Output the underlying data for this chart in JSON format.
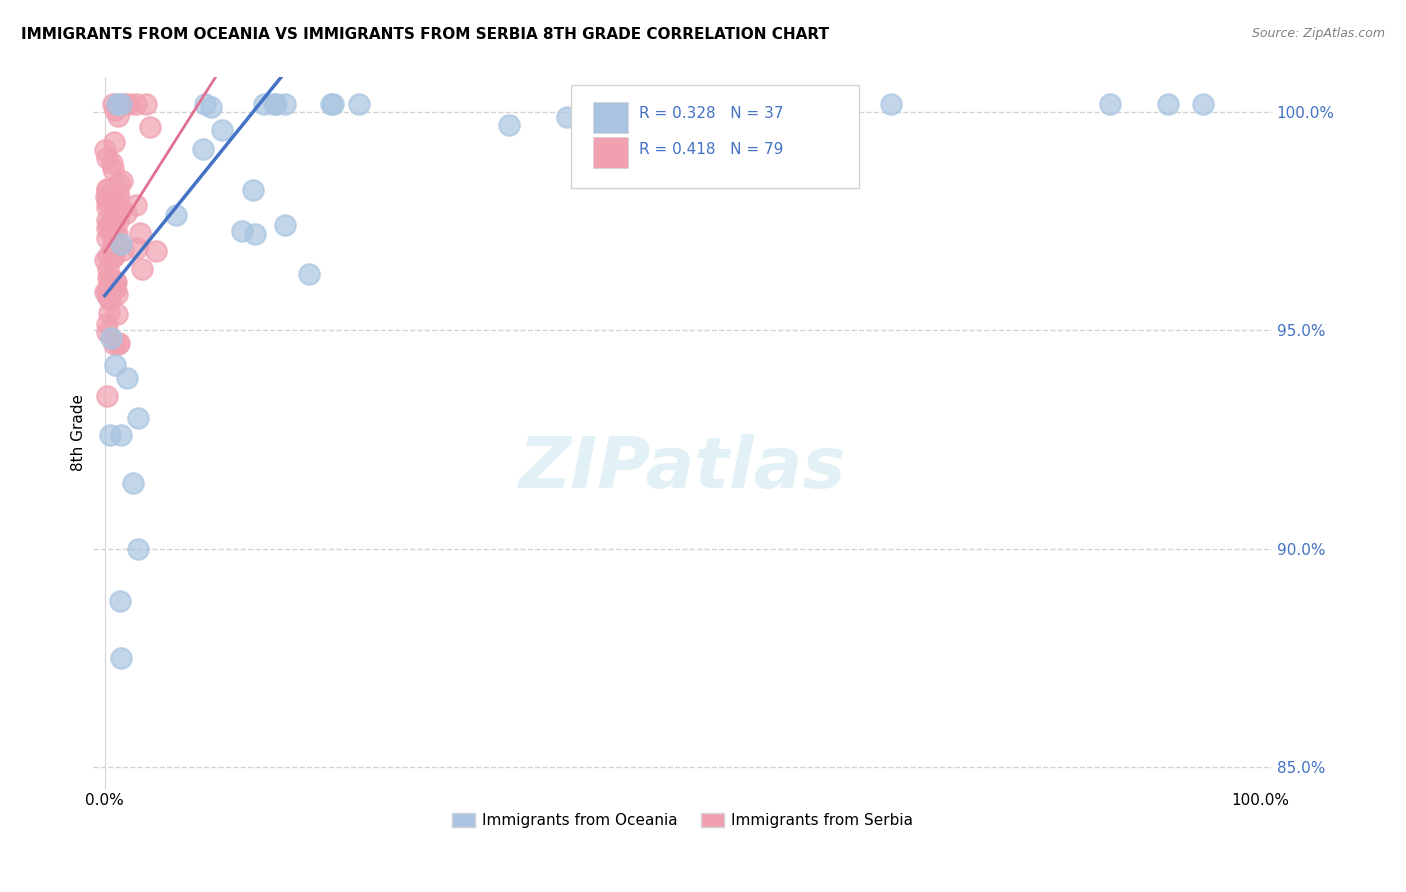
{
  "title": "IMMIGRANTS FROM OCEANIA VS IMMIGRANTS FROM SERBIA 8TH GRADE CORRELATION CHART",
  "source": "Source: ZipAtlas.com",
  "ylabel": "8th Grade",
  "legend_r_oceania": "R = 0.328",
  "legend_n_oceania": "N = 37",
  "legend_r_serbia": "R = 0.418",
  "legend_n_serbia": "N = 79",
  "legend_label_oceania": "Immigrants from Oceania",
  "legend_label_serbia": "Immigrants from Serbia",
  "oceania_color": "#a8c4e0",
  "serbia_color": "#f0a0b0",
  "trendline_oceania_color": "#4472c4",
  "trendline_serbia_color": "#e07090",
  "background_color": "#ffffff",
  "oceania_intercept": 0.958,
  "oceania_slope": 0.328,
  "serbia_intercept": 0.968,
  "serbia_slope": 0.418,
  "xlim": [
    -0.01,
    1.01
  ],
  "ylim": [
    0.845,
    1.008
  ],
  "ytick_vals": [
    0.85,
    0.9,
    0.95,
    1.0
  ],
  "ytick_labels": [
    "85.0%",
    "90.0%",
    "95.0%",
    "100.0%"
  ],
  "xtick_vals": [
    0.0,
    1.0
  ],
  "xtick_labels": [
    "0.0%",
    "100.0%"
  ]
}
